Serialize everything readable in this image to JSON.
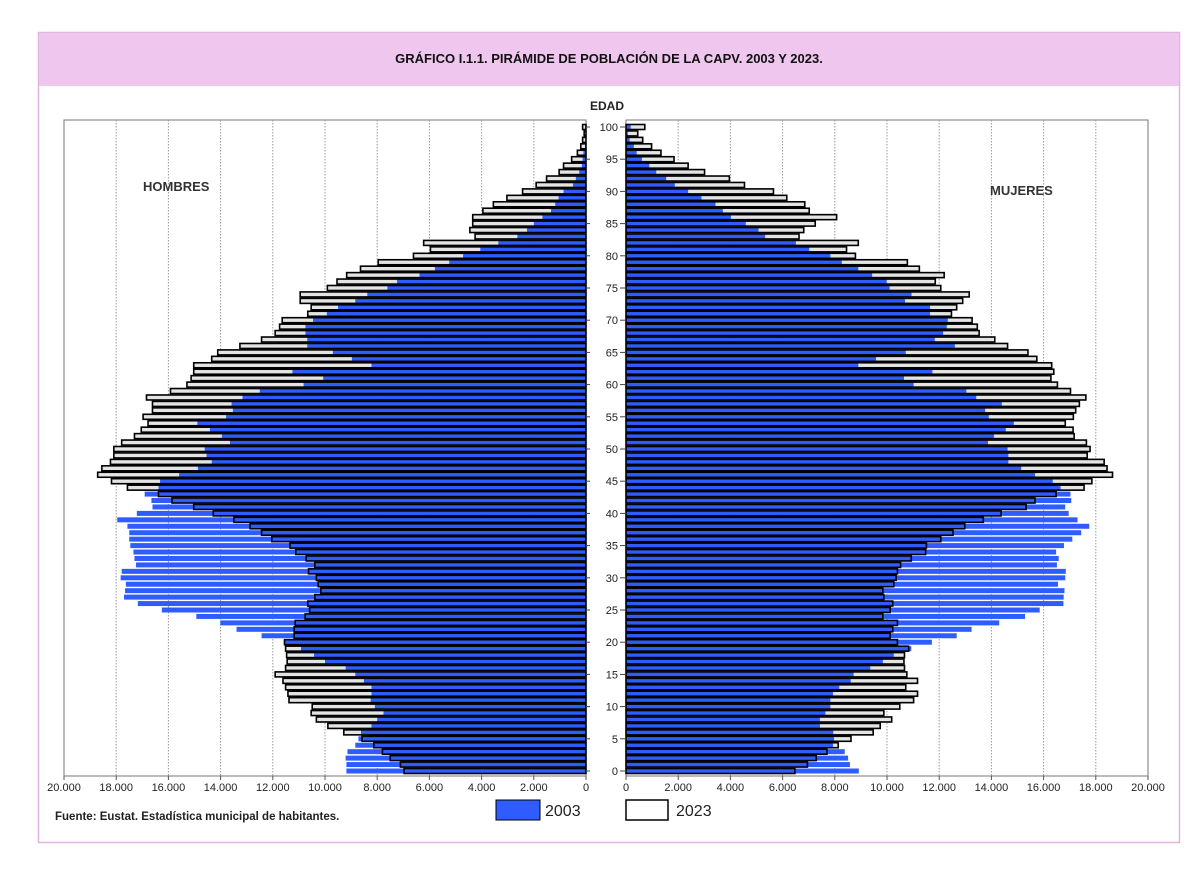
{
  "title": "GRÁFICO I.1.1. PIRÁMIDE DE POBLACIÓN DE LA CAPV. 2003 Y 2023.",
  "source": "Fuente: Eustat. Estadística municipal de habitantes.",
  "colors": {
    "title_bg": "#efc7ee",
    "border": "#e2b4e2",
    "s2003": "#2f5cff",
    "s2023_fill": "#e4e4e4",
    "outline": "#000000",
    "grid": "#9a9a9a"
  },
  "chart_data": {
    "type": "bar",
    "subtype": "population-pyramid",
    "title": "GRÁFICO I.1.1. PIRÁMIDE DE POBLACIÓN DE LA CAPV. 2003 Y 2023.",
    "ylabel": "EDAD",
    "left_label": "HOMBRES",
    "right_label": "MUJERES",
    "xlim": [
      0,
      20000
    ],
    "ylim": [
      0,
      100
    ],
    "grid": "vertical dotted",
    "legend_position": "bottom",
    "x_ticks_left": [
      "20.000",
      "18.000",
      "16.000",
      "14.000",
      "12.000",
      "10.000",
      "8.000",
      "6.000",
      "4.000",
      "2.000",
      "0"
    ],
    "x_ticks_right": [
      "0",
      "2.000",
      "4.000",
      "6.000",
      "8.000",
      "10.000",
      "12.000",
      "14.000",
      "16.000",
      "18.000",
      "20.000"
    ],
    "age_ticks": [
      "0",
      "5",
      "10",
      "15",
      "20",
      "25",
      "30",
      "35",
      "40",
      "45",
      "50",
      "55",
      "60",
      "65",
      "70",
      "75",
      "80",
      "85",
      "90",
      "95",
      "100"
    ],
    "ages_from": 0,
    "series": [
      {
        "name": "2003",
        "sex": "HOMBRES",
        "values": [
          9180,
          9180,
          9210,
          9140,
          8840,
          8720,
          8620,
          8220,
          8000,
          7760,
          8090,
          8250,
          8220,
          8220,
          8510,
          8840,
          9210,
          10000,
          10420,
          10920,
          11580,
          12430,
          13390,
          14010,
          14930,
          16250,
          17170,
          17700,
          17660,
          17630,
          17830,
          17790,
          17240,
          17300,
          17340,
          17460,
          17500,
          17500,
          17570,
          17960,
          17210,
          16610,
          16650,
          16910,
          16380,
          16320,
          15590,
          14870,
          14340,
          14540,
          14610,
          13640,
          13950,
          14410,
          14890,
          13790,
          13530,
          13580,
          13160,
          12500,
          10820,
          10070,
          11250,
          8220,
          8970,
          9700,
          10680,
          10680,
          10750,
          10750,
          10460,
          9930,
          9500,
          8840,
          8380,
          7610,
          7240,
          6380,
          5790,
          5240,
          4710,
          4050,
          3360,
          2630,
          2260,
          2000,
          1670,
          1340,
          1180,
          1050,
          860,
          500,
          390,
          260,
          160,
          130,
          100,
          40,
          20,
          10,
          30
        ]
      },
      {
        "name": "2023",
        "sex": "HOMBRES",
        "values": [
          6970,
          7110,
          7500,
          7800,
          8130,
          8580,
          9280,
          9890,
          10330,
          10530,
          10490,
          11380,
          11420,
          11510,
          11610,
          11910,
          11510,
          11450,
          11470,
          11510,
          11550,
          11180,
          11180,
          11140,
          10760,
          10590,
          10660,
          10390,
          10160,
          10260,
          10330,
          10630,
          10390,
          10720,
          11120,
          11340,
          12040,
          12430,
          12870,
          13490,
          14280,
          15030,
          15860,
          16380,
          17570,
          18180,
          18710,
          18550,
          18220,
          18090,
          18090,
          17790,
          17300,
          17040,
          16780,
          16970,
          16610,
          16610,
          16840,
          15920,
          15290,
          15130,
          15030,
          15030,
          14340,
          14110,
          13260,
          12430,
          11910,
          11740,
          11640,
          10660,
          10530,
          10950,
          10950,
          9910,
          9540,
          9170,
          8640,
          7960,
          6610,
          5960,
          6220,
          4250,
          4450,
          4340,
          4340,
          3950,
          3550,
          3030,
          2430,
          1910,
          1510,
          1030,
          860,
          550,
          330,
          200,
          130,
          70,
          130
        ]
      },
      {
        "name": "2003",
        "sex": "MUJERES",
        "values": [
          8920,
          8580,
          8510,
          8380,
          7930,
          7970,
          7940,
          7430,
          7430,
          7640,
          7830,
          7830,
          7930,
          8170,
          8610,
          8720,
          9360,
          9840,
          10260,
          10930,
          11720,
          12670,
          13240,
          14300,
          15290,
          15850,
          16760,
          16770,
          16800,
          16550,
          16830,
          16850,
          16510,
          16580,
          16480,
          16780,
          17100,
          17440,
          17750,
          17300,
          16960,
          16830,
          17060,
          17030,
          16650,
          16350,
          15670,
          15140,
          14650,
          14650,
          14620,
          13870,
          14100,
          14550,
          14860,
          13900,
          13760,
          14400,
          13420,
          13040,
          11020,
          10650,
          11740,
          8900,
          9580,
          10720,
          12600,
          11830,
          12150,
          12290,
          12330,
          11650,
          11650,
          10690,
          10940,
          10100,
          9990,
          9430,
          8900,
          8270,
          7830,
          7020,
          6510,
          5330,
          5080,
          4590,
          4020,
          3710,
          3430,
          2890,
          2380,
          1870,
          1540,
          1160,
          890,
          610,
          410,
          300,
          140,
          70,
          180
        ]
      },
      {
        "name": "2023",
        "sex": "MUJERES",
        "values": [
          6470,
          6950,
          7290,
          7700,
          8130,
          8620,
          9470,
          9740,
          10180,
          9880,
          10490,
          11020,
          11170,
          10720,
          11170,
          10760,
          10670,
          10650,
          10670,
          10830,
          10400,
          10120,
          10220,
          10400,
          9840,
          10120,
          10220,
          9880,
          9840,
          10260,
          10350,
          10400,
          10520,
          10930,
          11480,
          11510,
          12060,
          12530,
          12980,
          13690,
          14370,
          15330,
          15670,
          16480,
          17550,
          17850,
          18640,
          18430,
          18320,
          17670,
          17780,
          17640,
          17170,
          17130,
          16830,
          17140,
          17230,
          17370,
          17620,
          17030,
          16530,
          16280,
          16390,
          16310,
          15740,
          15400,
          14620,
          14130,
          13530,
          13460,
          13260,
          12470,
          12670,
          12900,
          13150,
          12060,
          11850,
          12190,
          11240,
          10780,
          8790,
          8450,
          8900,
          6630,
          6810,
          7250,
          8070,
          7020,
          6850,
          6160,
          5650,
          4540,
          3960,
          3010,
          2380,
          1840,
          1340,
          980,
          640,
          450,
          720
        ]
      }
    ],
    "legend": [
      "2003",
      "2023"
    ]
  }
}
